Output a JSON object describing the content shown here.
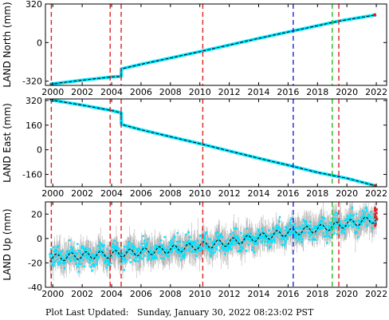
{
  "footer": {
    "label": "Plot Last Updated:",
    "timestamp": "Sunday, January 30, 2022 08:23:02 PST"
  },
  "colors": {
    "data_points": "#00e5ff",
    "error_bars": "#b4b4b4",
    "model_line": "#000000",
    "event_red": "#e02020",
    "event_blue": "#2020e0",
    "event_green": "#20c020",
    "frame": "#000000"
  },
  "chart_data": [
    {
      "type": "line",
      "ylabel": "LAND North (mm)",
      "xlim": [
        1999.5,
        2022.7
      ],
      "ylim": [
        -355,
        320
      ],
      "x_ticks": [
        2000,
        2002,
        2004,
        2006,
        2008,
        2010,
        2012,
        2014,
        2016,
        2018,
        2020,
        2022
      ],
      "y_ticks": [
        -320,
        0,
        320
      ],
      "show_x_tick_labels": true,
      "series": [
        {
          "x": [
            1999.8,
            2002.0,
            2004.0,
            2004.65,
            2004.66,
            2006.0,
            2008.0,
            2010.0,
            2012.0,
            2014.0,
            2016.0,
            2018.0,
            2019.5,
            2022.0
          ],
          "y": [
            -345,
            -312,
            -285,
            -280,
            -218,
            -180,
            -128,
            -75,
            -20,
            35,
            88,
            140,
            180,
            230
          ]
        }
      ],
      "event_lines": [
        {
          "x": 1999.9,
          "color": "red"
        },
        {
          "x": 2003.9,
          "color": "red"
        },
        {
          "x": 2004.65,
          "color": "red"
        },
        {
          "x": 2010.2,
          "color": "red"
        },
        {
          "x": 2016.35,
          "color": "blue"
        },
        {
          "x": 2019.0,
          "color": "green"
        },
        {
          "x": 2019.45,
          "color": "red"
        }
      ]
    },
    {
      "type": "line",
      "ylabel": "LAND East (mm)",
      "xlim": [
        1999.5,
        2022.7
      ],
      "ylim": [
        -240,
        330
      ],
      "x_ticks": [
        2000,
        2002,
        2004,
        2006,
        2008,
        2010,
        2012,
        2014,
        2016,
        2018,
        2020,
        2022
      ],
      "y_ticks": [
        -160,
        0,
        160,
        320
      ],
      "show_x_tick_labels": true,
      "series": [
        {
          "x": [
            1999.8,
            2002.0,
            2004.0,
            2004.65,
            2004.66,
            2006.0,
            2008.0,
            2010.0,
            2012.0,
            2014.0,
            2016.0,
            2018.0,
            2020.0,
            2022.0
          ],
          "y": [
            325,
            290,
            255,
            240,
            165,
            130,
            85,
            40,
            -8,
            -55,
            -100,
            -147,
            -185,
            -235
          ]
        }
      ],
      "event_lines": [
        {
          "x": 1999.9,
          "color": "red"
        },
        {
          "x": 2003.9,
          "color": "red"
        },
        {
          "x": 2004.65,
          "color": "red"
        },
        {
          "x": 2010.2,
          "color": "red"
        },
        {
          "x": 2016.35,
          "color": "blue"
        },
        {
          "x": 2019.0,
          "color": "green"
        },
        {
          "x": 2019.45,
          "color": "red"
        }
      ]
    },
    {
      "type": "scatter",
      "ylabel": "LAND Up (mm)",
      "xlim": [
        1999.5,
        2022.7
      ],
      "ylim": [
        -40,
        30
      ],
      "x_ticks": [
        2000,
        2002,
        2004,
        2006,
        2008,
        2010,
        2012,
        2014,
        2016,
        2018,
        2020,
        2022
      ],
      "y_ticks": [
        -40,
        -20,
        0,
        20
      ],
      "show_x_tick_labels": true,
      "trend": {
        "x": [
          1999.8,
          2002.0,
          2004.0,
          2006.0,
          2008.0,
          2010.0,
          2012.0,
          2014.0,
          2016.0,
          2018.0,
          2020.0,
          2022.0
        ],
        "y": [
          -16,
          -14,
          -13,
          -11,
          -9,
          -6,
          -3,
          1,
          5,
          8,
          12,
          16
        ]
      },
      "seasonal_amplitude_mm": 3,
      "scatter_sd_mm": 4,
      "error_bar_half_mm": 8,
      "event_lines": [
        {
          "x": 1999.9,
          "color": "red"
        },
        {
          "x": 2003.9,
          "color": "red"
        },
        {
          "x": 2004.65,
          "color": "red"
        },
        {
          "x": 2010.2,
          "color": "red"
        },
        {
          "x": 2016.35,
          "color": "blue"
        },
        {
          "x": 2019.0,
          "color": "green"
        },
        {
          "x": 2019.45,
          "color": "red"
        }
      ]
    }
  ]
}
